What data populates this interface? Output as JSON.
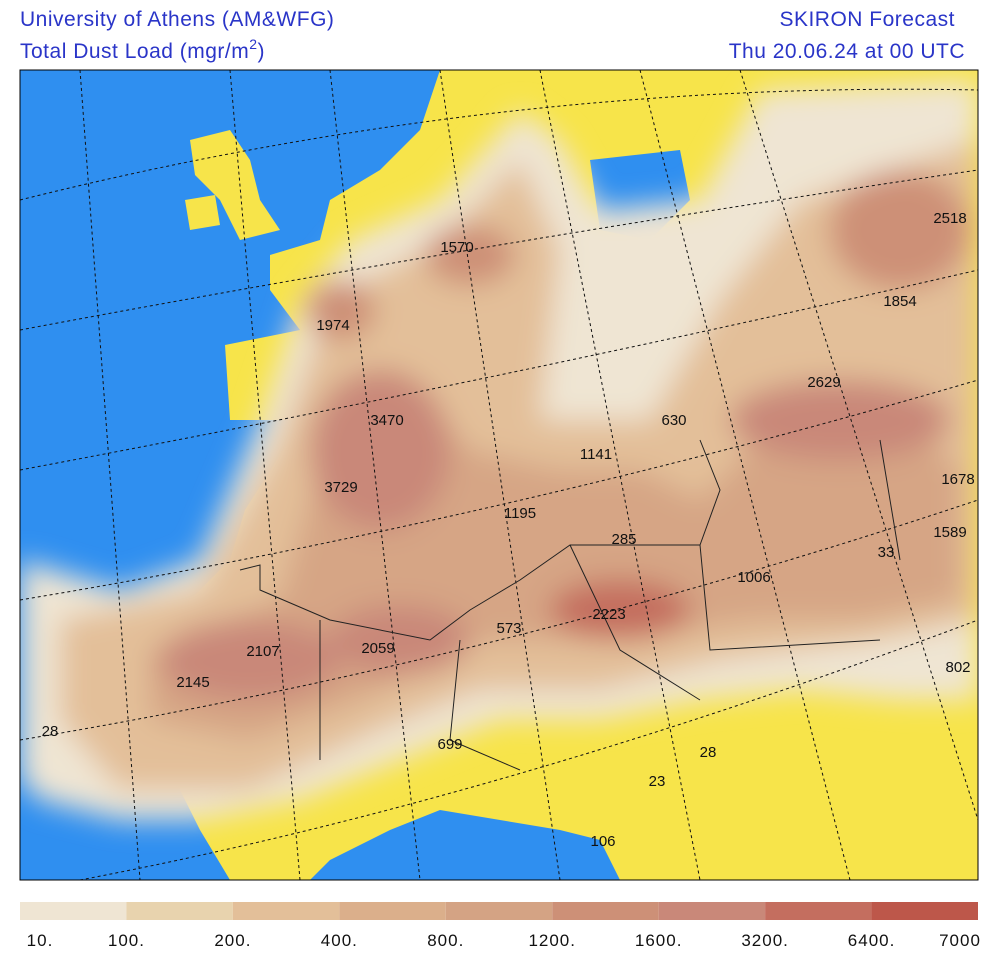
{
  "header": {
    "left_line1": "University of Athens (AM&WFG)",
    "left_line2": "Total Dust Load (mgr/m",
    "left_line2_superscript": "2",
    "left_line2_close": ")",
    "right_line1": "SKIRON Forecast",
    "right_line2": "Thu 20.06.24 at 00 UTC"
  },
  "map_labels": [
    1570,
    1974,
    3470,
    3729,
    1195,
    1141,
    630,
    285,
    1006,
    573,
    2223,
    2059,
    2107,
    2145,
    28,
    699,
    28,
    23,
    106,
    2518,
    1854,
    2629,
    1678,
    1589,
    33,
    802
  ],
  "colorbar": {
    "labels": [
      "10.",
      "100.",
      "200.",
      "400.",
      "800.",
      "1200.",
      "1600.",
      "3200.",
      "6400.",
      "7000"
    ],
    "colors": [
      "#efe5d3",
      "#e8d3ae",
      "#e3bf99",
      "#dbaf8b",
      "#d4a384",
      "#cd9077",
      "#c98879",
      "#c46e5f",
      "#bd574a"
    ]
  }
}
